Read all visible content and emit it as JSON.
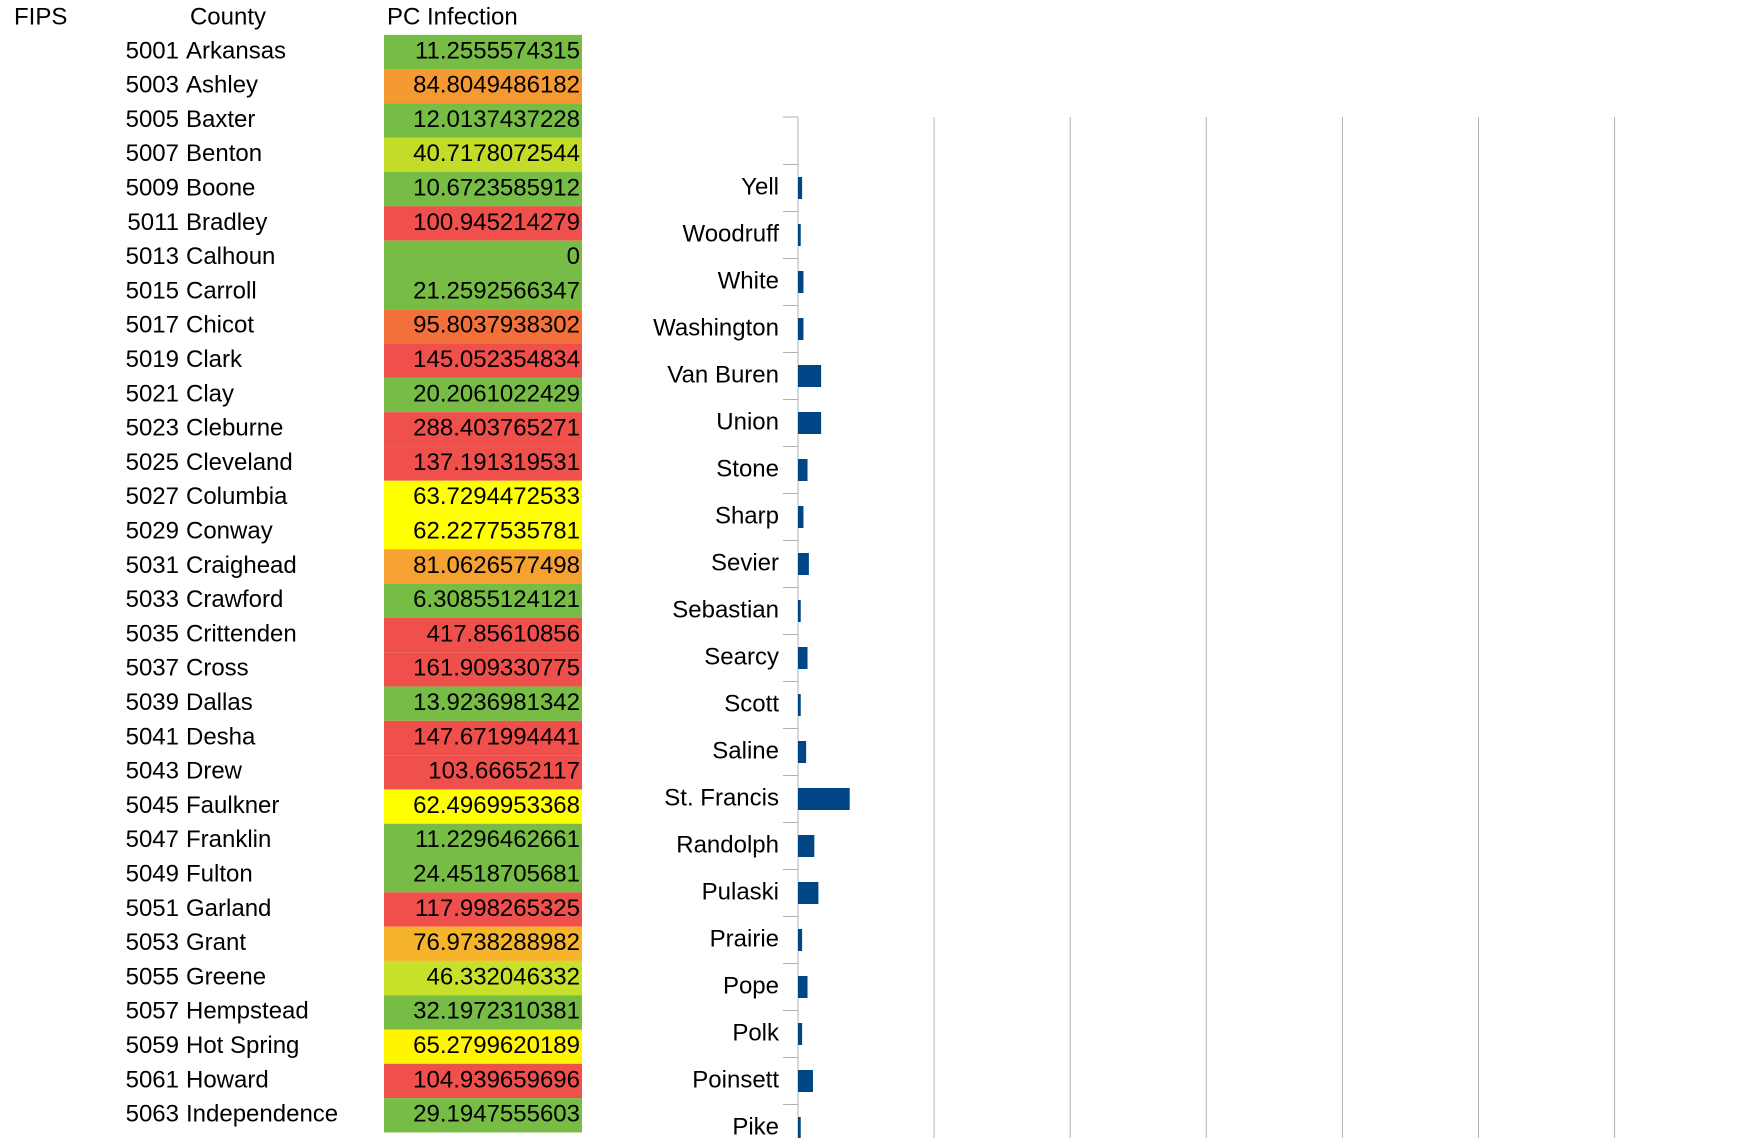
{
  "table": {
    "headers": [
      "FIPS",
      "County",
      "PC Infection"
    ],
    "rows": [
      [
        5001,
        "Arkansas",
        11.2555574315
      ],
      [
        5003,
        "Ashley",
        84.8049486182
      ],
      [
        5005,
        "Baxter",
        12.0137437228
      ],
      [
        5007,
        "Benton",
        40.7178072544
      ],
      [
        5009,
        "Boone",
        10.6723585912
      ],
      [
        5011,
        "Bradley",
        100.945214279
      ],
      [
        5013,
        "Calhoun",
        0
      ],
      [
        5015,
        "Carroll",
        21.2592566347
      ],
      [
        5017,
        "Chicot",
        95.8037938302
      ],
      [
        5019,
        "Clark",
        145.052354834
      ],
      [
        5021,
        "Clay",
        20.2061022429
      ],
      [
        5023,
        "Cleburne",
        288.403765271
      ],
      [
        5025,
        "Cleveland",
        137.191319531
      ],
      [
        5027,
        "Columbia",
        63.7294472533
      ],
      [
        5029,
        "Conway",
        62.2277535781
      ],
      [
        5031,
        "Craighead",
        81.0626577498
      ],
      [
        5033,
        "Crawford",
        6.30855124121
      ],
      [
        5035,
        "Crittenden",
        417.85610856
      ],
      [
        5037,
        "Cross",
        161.909330775
      ],
      [
        5039,
        "Dallas",
        13.9236981342
      ],
      [
        5041,
        "Desha",
        147.671994441
      ],
      [
        5043,
        "Drew",
        103.66652117
      ],
      [
        5045,
        "Faulkner",
        62.4969953368
      ],
      [
        5047,
        "Franklin",
        11.2296462661
      ],
      [
        5049,
        "Fulton",
        24.4518705681
      ],
      [
        5051,
        "Garland",
        117.998265325
      ],
      [
        5053,
        "Grant",
        76.9738288982
      ],
      [
        5055,
        "Greene",
        46.332046332
      ],
      [
        5057,
        "Hempstead",
        32.1972310381
      ],
      [
        5059,
        "Hot Spring",
        65.2799620189
      ],
      [
        5061,
        "Howard",
        104.939659696
      ],
      [
        5063,
        "Independence",
        29.1947555603
      ]
    ],
    "colors": [
      "#77bc44",
      "#f59a32",
      "#77bc44",
      "#c3dc2a",
      "#77bc44",
      "#f0504c",
      "#77bc44",
      "#77bc44",
      "#f2703a",
      "#f0504c",
      "#77bc44",
      "#f0504c",
      "#f0504c",
      "#ffff00",
      "#ffff00",
      "#f5a233",
      "#77bc44",
      "#f0504c",
      "#f0504c",
      "#77bc44",
      "#f0504c",
      "#f0504c",
      "#ffff00",
      "#77bc44",
      "#77bc44",
      "#f0504c",
      "#f5b42c",
      "#c7e02a",
      "#77bc44",
      "#fff500",
      "#f0504c",
      "#77bc44"
    ]
  },
  "chart_data": {
    "type": "barh",
    "categories": [
      null,
      "Yell",
      "Woodruff",
      "White",
      "Washington",
      "Van Buren",
      "Union",
      "Stone",
      "Sharp",
      "Sevier",
      "Sebastian",
      "Searcy",
      "Scott",
      "Saline",
      "St. Francis",
      "Randolph",
      "Pulaski",
      "Prairie",
      "Pope",
      "Polk",
      "Poinsett",
      "Pike"
    ],
    "values": [
      null,
      0.03,
      0.02,
      0.04,
      0.04,
      0.17,
      0.17,
      0.07,
      0.04,
      0.08,
      0.02,
      0.07,
      0.02,
      0.06,
      0.38,
      0.12,
      0.15,
      0.03,
      0.07,
      0.03,
      0.11,
      0.02
    ],
    "color": "#004586",
    "xlim": [
      0,
      7
    ],
    "xticks": [
      0,
      1,
      2,
      3,
      4,
      5,
      6
    ],
    "grid": true
  }
}
